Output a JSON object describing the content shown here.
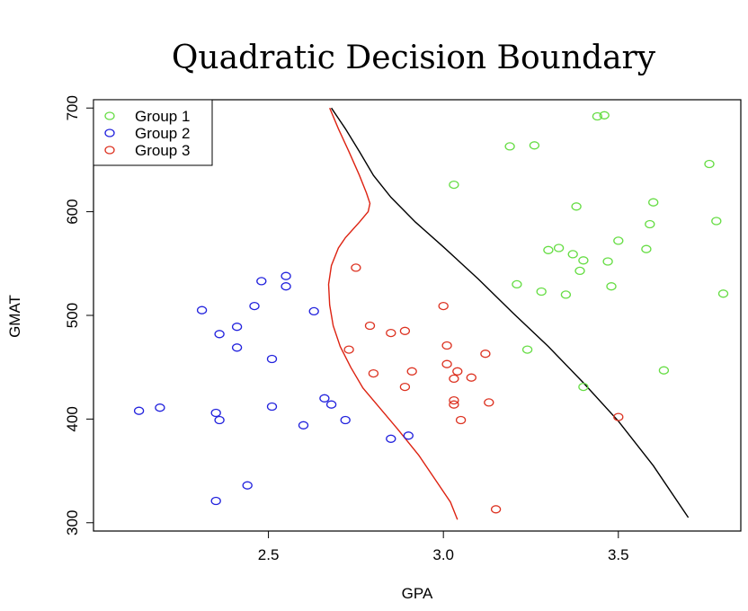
{
  "chart_data": {
    "type": "scatter",
    "title": "Quadratic Decision Boundary",
    "xlabel": "GPA",
    "ylabel": "GMAT",
    "xlim": [
      2.1,
      3.8
    ],
    "ylim": [
      300,
      700
    ],
    "x_ticks": [
      "2.5",
      "3.0",
      "3.5"
    ],
    "y_ticks": [
      "300",
      "400",
      "500",
      "600",
      "700"
    ],
    "grid": false,
    "legend_position": "top-left",
    "series": [
      {
        "name": "Group 1",
        "color": "#66dd44",
        "points": [
          [
            3.44,
            692
          ],
          [
            3.46,
            693
          ],
          [
            3.19,
            663
          ],
          [
            3.26,
            664
          ],
          [
            3.76,
            646
          ],
          [
            3.03,
            626
          ],
          [
            3.38,
            605
          ],
          [
            3.6,
            609
          ],
          [
            3.78,
            591
          ],
          [
            3.59,
            588
          ],
          [
            3.5,
            572
          ],
          [
            3.33,
            565
          ],
          [
            3.3,
            563
          ],
          [
            3.37,
            559
          ],
          [
            3.58,
            564
          ],
          [
            3.4,
            553
          ],
          [
            3.47,
            552
          ],
          [
            3.39,
            543
          ],
          [
            3.21,
            530
          ],
          [
            3.28,
            523
          ],
          [
            3.35,
            520
          ],
          [
            3.48,
            528
          ],
          [
            3.8,
            521
          ],
          [
            3.24,
            467
          ],
          [
            3.63,
            447
          ],
          [
            3.4,
            431
          ]
        ]
      },
      {
        "name": "Group 2",
        "color": "#2222dd",
        "points": [
          [
            2.55,
            538
          ],
          [
            2.48,
            533
          ],
          [
            2.55,
            528
          ],
          [
            2.31,
            505
          ],
          [
            2.46,
            509
          ],
          [
            2.63,
            504
          ],
          [
            2.41,
            489
          ],
          [
            2.36,
            482
          ],
          [
            2.41,
            469
          ],
          [
            2.51,
            458
          ],
          [
            2.66,
            420
          ],
          [
            2.68,
            414
          ],
          [
            2.51,
            412
          ],
          [
            2.13,
            408
          ],
          [
            2.19,
            411
          ],
          [
            2.35,
            406
          ],
          [
            2.36,
            399
          ],
          [
            2.72,
            399
          ],
          [
            2.6,
            394
          ],
          [
            2.9,
            384
          ],
          [
            2.85,
            381
          ],
          [
            2.44,
            336
          ],
          [
            2.35,
            321
          ]
        ]
      },
      {
        "name": "Group 3",
        "color": "#dd3322",
        "points": [
          [
            2.75,
            546
          ],
          [
            3.0,
            509
          ],
          [
            2.79,
            490
          ],
          [
            2.85,
            483
          ],
          [
            2.89,
            485
          ],
          [
            3.01,
            471
          ],
          [
            2.73,
            467
          ],
          [
            3.12,
            463
          ],
          [
            3.01,
            453
          ],
          [
            2.8,
            444
          ],
          [
            2.91,
            446
          ],
          [
            3.04,
            446
          ],
          [
            3.08,
            440
          ],
          [
            3.03,
            439
          ],
          [
            2.89,
            431
          ],
          [
            3.03,
            418
          ],
          [
            3.13,
            416
          ],
          [
            3.03,
            414
          ],
          [
            3.5,
            402
          ],
          [
            3.05,
            399
          ],
          [
            3.15,
            313
          ]
        ]
      }
    ],
    "boundaries": [
      {
        "color": "#dd2211",
        "points": [
          [
            2.675,
            700
          ],
          [
            2.7,
            680
          ],
          [
            2.73,
            658
          ],
          [
            2.76,
            635
          ],
          [
            2.78,
            618
          ],
          [
            2.79,
            608
          ],
          [
            2.785,
            600
          ],
          [
            2.76,
            590
          ],
          [
            2.72,
            575
          ],
          [
            2.7,
            565
          ],
          [
            2.68,
            548
          ],
          [
            2.672,
            530
          ],
          [
            2.675,
            510
          ],
          [
            2.685,
            490
          ],
          [
            2.705,
            470
          ],
          [
            2.735,
            450
          ],
          [
            2.77,
            430
          ],
          [
            2.82,
            410
          ],
          [
            2.87,
            390
          ],
          [
            2.93,
            365
          ],
          [
            2.98,
            340
          ],
          [
            3.02,
            320
          ],
          [
            3.04,
            303
          ]
        ]
      },
      {
        "color": "#000000",
        "points": [
          [
            2.68,
            700
          ],
          [
            2.72,
            680
          ],
          [
            2.76,
            658
          ],
          [
            2.8,
            635
          ],
          [
            2.85,
            614
          ],
          [
            2.92,
            590
          ],
          [
            3.0,
            566
          ],
          [
            3.1,
            535
          ],
          [
            3.2,
            502
          ],
          [
            3.3,
            470
          ],
          [
            3.4,
            435
          ],
          [
            3.5,
            398
          ],
          [
            3.6,
            355
          ],
          [
            3.7,
            305
          ]
        ]
      }
    ]
  }
}
